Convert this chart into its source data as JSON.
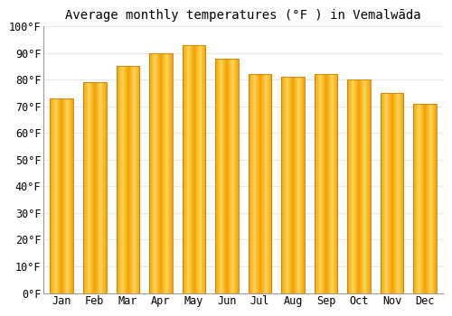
{
  "title": "Average monthly temperatures (°F ) in Vemalwāda",
  "months": [
    "Jan",
    "Feb",
    "Mar",
    "Apr",
    "May",
    "Jun",
    "Jul",
    "Aug",
    "Sep",
    "Oct",
    "Nov",
    "Dec"
  ],
  "values": [
    73,
    79,
    85,
    90,
    93,
    88,
    82,
    81,
    82,
    80,
    75,
    71
  ],
  "bar_color_center": "#FFD555",
  "bar_color_edge": "#F5A000",
  "bar_border_color": "#CC8000",
  "ylim": [
    0,
    100
  ],
  "yticks": [
    0,
    10,
    20,
    30,
    40,
    50,
    60,
    70,
    80,
    90,
    100
  ],
  "ytick_labels": [
    "0°F",
    "10°F",
    "20°F",
    "30°F",
    "40°F",
    "50°F",
    "60°F",
    "70°F",
    "80°F",
    "90°F",
    "100°F"
  ],
  "background_color": "#ffffff",
  "plot_bg_color": "#ffffff",
  "grid_color": "#e8e8e8",
  "title_fontsize": 10,
  "tick_fontsize": 8.5,
  "bar_width": 0.7
}
